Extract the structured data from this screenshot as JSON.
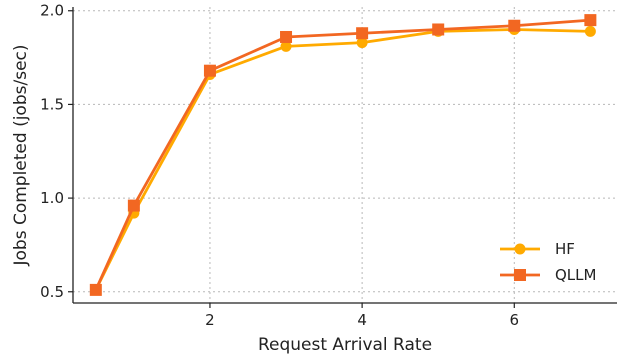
{
  "chart_data": {
    "type": "line",
    "xlabel": "Request Arrival Rate",
    "ylabel": "Jobs Completed (jobs/sec)",
    "xlim": [
      0.2,
      7.35
    ],
    "ylim": [
      0.44,
      2.02
    ],
    "xticks": [
      2,
      4,
      6
    ],
    "xtick_labels": [
      "2",
      "4",
      "6"
    ],
    "yticks": [
      0.5,
      1.0,
      1.5,
      2.0
    ],
    "ytick_labels": [
      "0.5",
      "1.0",
      "1.5",
      "2.0"
    ],
    "grid": true,
    "legend_position": "lower-right",
    "x": [
      0.5,
      1,
      2,
      3,
      4,
      5,
      6,
      7
    ],
    "series": [
      {
        "name": "HF",
        "color": "#FFAA00",
        "marker": "circle",
        "values": [
          0.51,
          0.92,
          1.66,
          1.81,
          1.83,
          1.89,
          1.9,
          1.89
        ]
      },
      {
        "name": "QLLM",
        "color": "#F26722",
        "marker": "square",
        "values": [
          0.51,
          0.96,
          1.68,
          1.86,
          1.88,
          1.9,
          1.92,
          1.95
        ]
      }
    ]
  }
}
